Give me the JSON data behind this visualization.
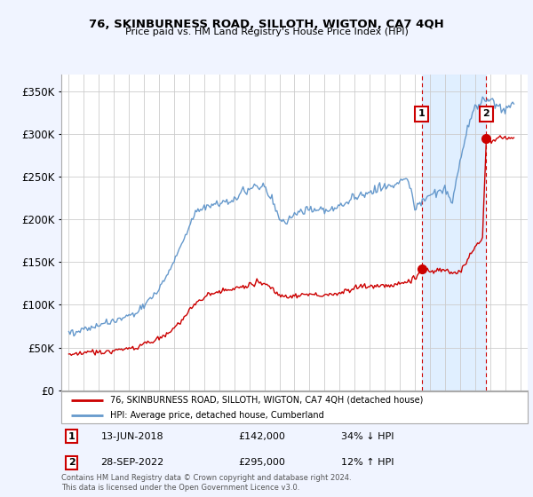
{
  "title": "76, SKINBURNESS ROAD, SILLOTH, WIGTON, CA7 4QH",
  "subtitle": "Price paid vs. HM Land Registry's House Price Index (HPI)",
  "legend_label_red": "76, SKINBURNESS ROAD, SILLOTH, WIGTON, CA7 4QH (detached house)",
  "legend_label_blue": "HPI: Average price, detached house, Cumberland",
  "annotation1_label": "1",
  "annotation1_date": "13-JUN-2018",
  "annotation1_price": "£142,000",
  "annotation1_hpi": "34% ↓ HPI",
  "annotation1_year": 2018.45,
  "annotation1_value": 142000,
  "annotation2_label": "2",
  "annotation2_date": "28-SEP-2022",
  "annotation2_price": "£295,000",
  "annotation2_hpi": "12% ↑ HPI",
  "annotation2_year": 2022.75,
  "annotation2_value": 295000,
  "footer1": "Contains HM Land Registry data © Crown copyright and database right 2024.",
  "footer2": "This data is licensed under the Open Government Licence v3.0.",
  "ylim": [
    0,
    370000
  ],
  "xlim_start": 1994.5,
  "xlim_end": 2025.5,
  "red_color": "#cc0000",
  "blue_color": "#6699cc",
  "grid_color": "#cccccc",
  "bg_color": "#f0f4ff",
  "plot_bg": "#ffffff",
  "shade_color": "#ddeeff",
  "yticks": [
    0,
    50000,
    100000,
    150000,
    200000,
    250000,
    300000,
    350000
  ],
  "ytick_labels": [
    "£0",
    "£50K",
    "£100K",
    "£150K",
    "£200K",
    "£250K",
    "£300K",
    "£350K"
  ],
  "xticks": [
    1995,
    1996,
    1997,
    1998,
    1999,
    2000,
    2001,
    2002,
    2003,
    2004,
    2005,
    2006,
    2007,
    2008,
    2009,
    2010,
    2011,
    2012,
    2013,
    2014,
    2015,
    2016,
    2017,
    2018,
    2019,
    2020,
    2021,
    2022,
    2023,
    2024,
    2025
  ]
}
